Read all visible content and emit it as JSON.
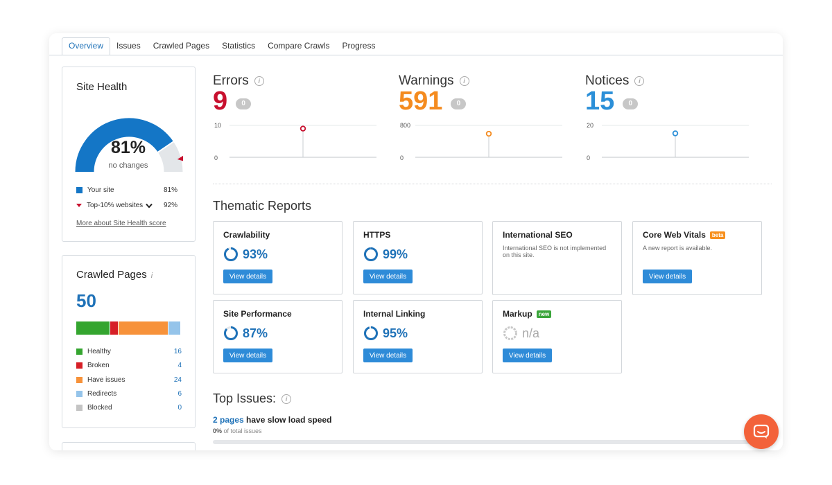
{
  "tabs": [
    "Overview",
    "Issues",
    "Crawled Pages",
    "Statistics",
    "Compare Crawls",
    "Progress"
  ],
  "active_tab": "Overview",
  "site_health": {
    "title": "Site Health",
    "percent": "81%",
    "value": 0.81,
    "top10_value": 0.92,
    "subtitle": "no changes",
    "legend": {
      "your_site_label": "Your site",
      "your_site_value": "81%",
      "top10_label": "Top-10% websites",
      "top10_value_label": "92%"
    },
    "more_link": "More about Site Health score",
    "colors": {
      "primary": "#1476c6",
      "rest": "#e3e6e9",
      "marker": "#c8102e"
    }
  },
  "crawled_pages": {
    "title": "Crawled Pages",
    "info": "i",
    "count": "50",
    "rows": [
      {
        "label": "Healthy",
        "value": "16",
        "color": "#34a52f",
        "n": 16
      },
      {
        "label": "Broken",
        "value": "4",
        "color": "#d61f26",
        "n": 4
      },
      {
        "label": "Have issues",
        "value": "24",
        "color": "#f7923a",
        "n": 24
      },
      {
        "label": "Redirects",
        "value": "6",
        "color": "#95c4ea",
        "n": 6
      },
      {
        "label": "Blocked",
        "value": "0",
        "color": "#c4c4c4",
        "n": 0
      }
    ]
  },
  "metrics": {
    "errors": {
      "label": "Errors",
      "value": "9",
      "change": "0",
      "color": "#c8102e",
      "y_max": "10",
      "y_min": "0",
      "point": 9,
      "max": 10
    },
    "warnings": {
      "label": "Warnings",
      "value": "591",
      "change": "0",
      "color": "#f48b1f",
      "y_max": "800",
      "y_min": "0",
      "point": 591,
      "max": 800
    },
    "notices": {
      "label": "Notices",
      "value": "15",
      "change": "0",
      "color": "#2b8fd8",
      "y_max": "20",
      "y_min": "0",
      "point": 15,
      "max": 20
    }
  },
  "thematic": {
    "title": "Thematic Reports",
    "button_label": "View details",
    "reports": [
      {
        "title": "Crawlability",
        "percent": "93%",
        "value": 0.93
      },
      {
        "title": "HTTPS",
        "percent": "99%",
        "value": 0.99
      },
      {
        "title": "International SEO",
        "desc": "International SEO is not implemented on this site."
      },
      {
        "title": "Core Web Vitals",
        "badge": "beta",
        "desc": "A new report is available."
      },
      {
        "title": "Site Performance",
        "percent": "87%",
        "value": 0.87
      },
      {
        "title": "Internal Linking",
        "percent": "95%",
        "value": 0.95
      },
      {
        "title": "Markup",
        "badge": "new",
        "percent": "n/a"
      }
    ],
    "badge_colors": {
      "beta": "#f7901e",
      "new": "#3aa53a"
    }
  },
  "top_issues": {
    "title": "Top Issues:",
    "link": "2 pages",
    "text": " have slow load speed",
    "sub_pct": "0%",
    "sub_text": " of total issues"
  }
}
